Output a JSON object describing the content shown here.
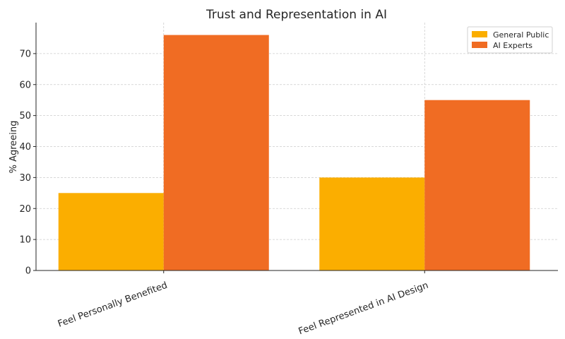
{
  "chart_data": {
    "type": "bar",
    "title": "Trust and Representation in AI",
    "xlabel": "",
    "ylabel": "% Agreeing",
    "categories": [
      "Feel Personally Benefited",
      "Feel Represented in AI Design"
    ],
    "series": [
      {
        "name": "General Public",
        "values": [
          25,
          30
        ],
        "color": "#FBAE00"
      },
      {
        "name": "AI Experts",
        "values": [
          76,
          55
        ],
        "color": "#F06C23"
      }
    ],
    "ylim": [
      0,
      80
    ],
    "yticks": [
      0,
      10,
      20,
      30,
      40,
      50,
      60,
      70
    ],
    "grid": true,
    "legend_position": "top-right"
  }
}
